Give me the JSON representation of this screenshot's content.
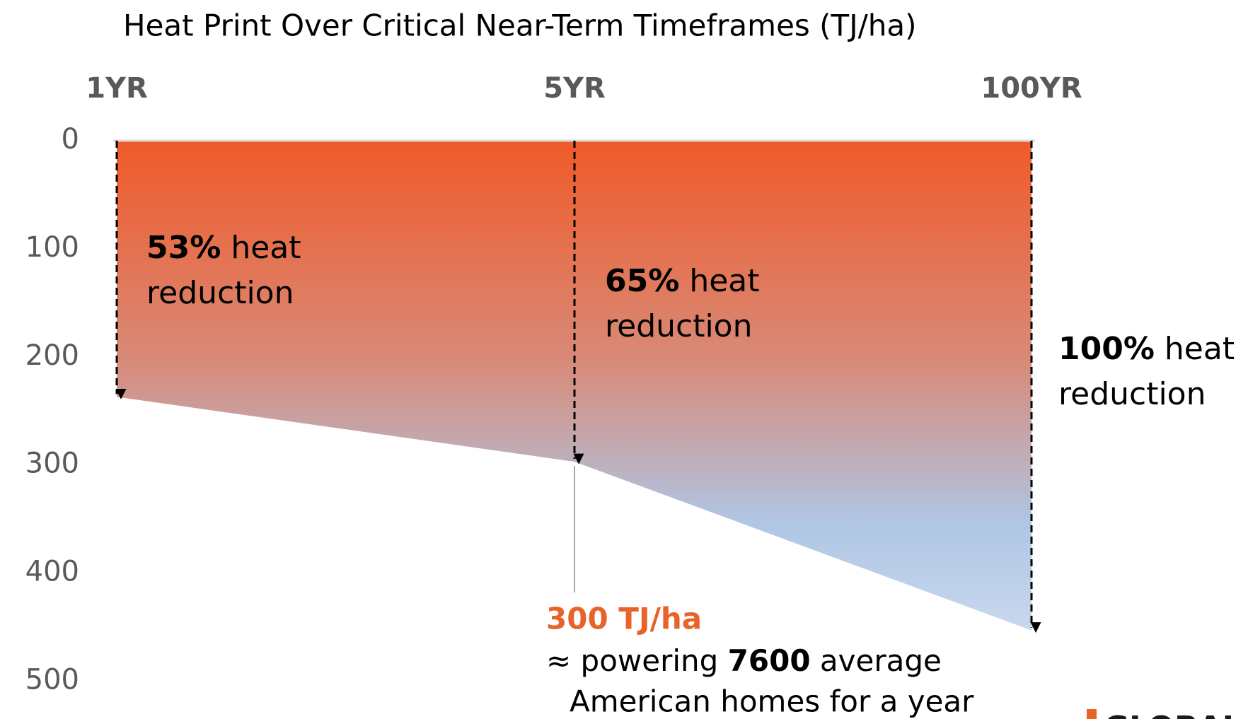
{
  "chart_data": {
    "type": "area",
    "title": "Heat Print Over Critical Near-Term Timeframes (TJ/ha)",
    "categories": [
      "1YR",
      "5YR",
      "100YR"
    ],
    "values": [
      237,
      297,
      453
    ],
    "ylim": [
      0,
      535
    ],
    "yticks": [
      0,
      100,
      200,
      300,
      400,
      500
    ],
    "y_inverted": true,
    "gradient": [
      "#f05a28",
      "#d88a78",
      "#afc6e4",
      "#c8d8ee"
    ],
    "annotations": [
      {
        "bold": "53%",
        "text": " heat",
        "line2": "reduction"
      },
      {
        "bold": "65%",
        "text": " heat",
        "line2": "reduction"
      },
      {
        "bold": "100%",
        "text": " heat",
        "line2": "reduction"
      }
    ],
    "callout": {
      "value_label": "300 TJ/ha",
      "pre": "≈ powering ",
      "bold": "7600",
      "post": " average",
      "line2": "American homes for a year"
    },
    "logo": "GLOBAL"
  }
}
